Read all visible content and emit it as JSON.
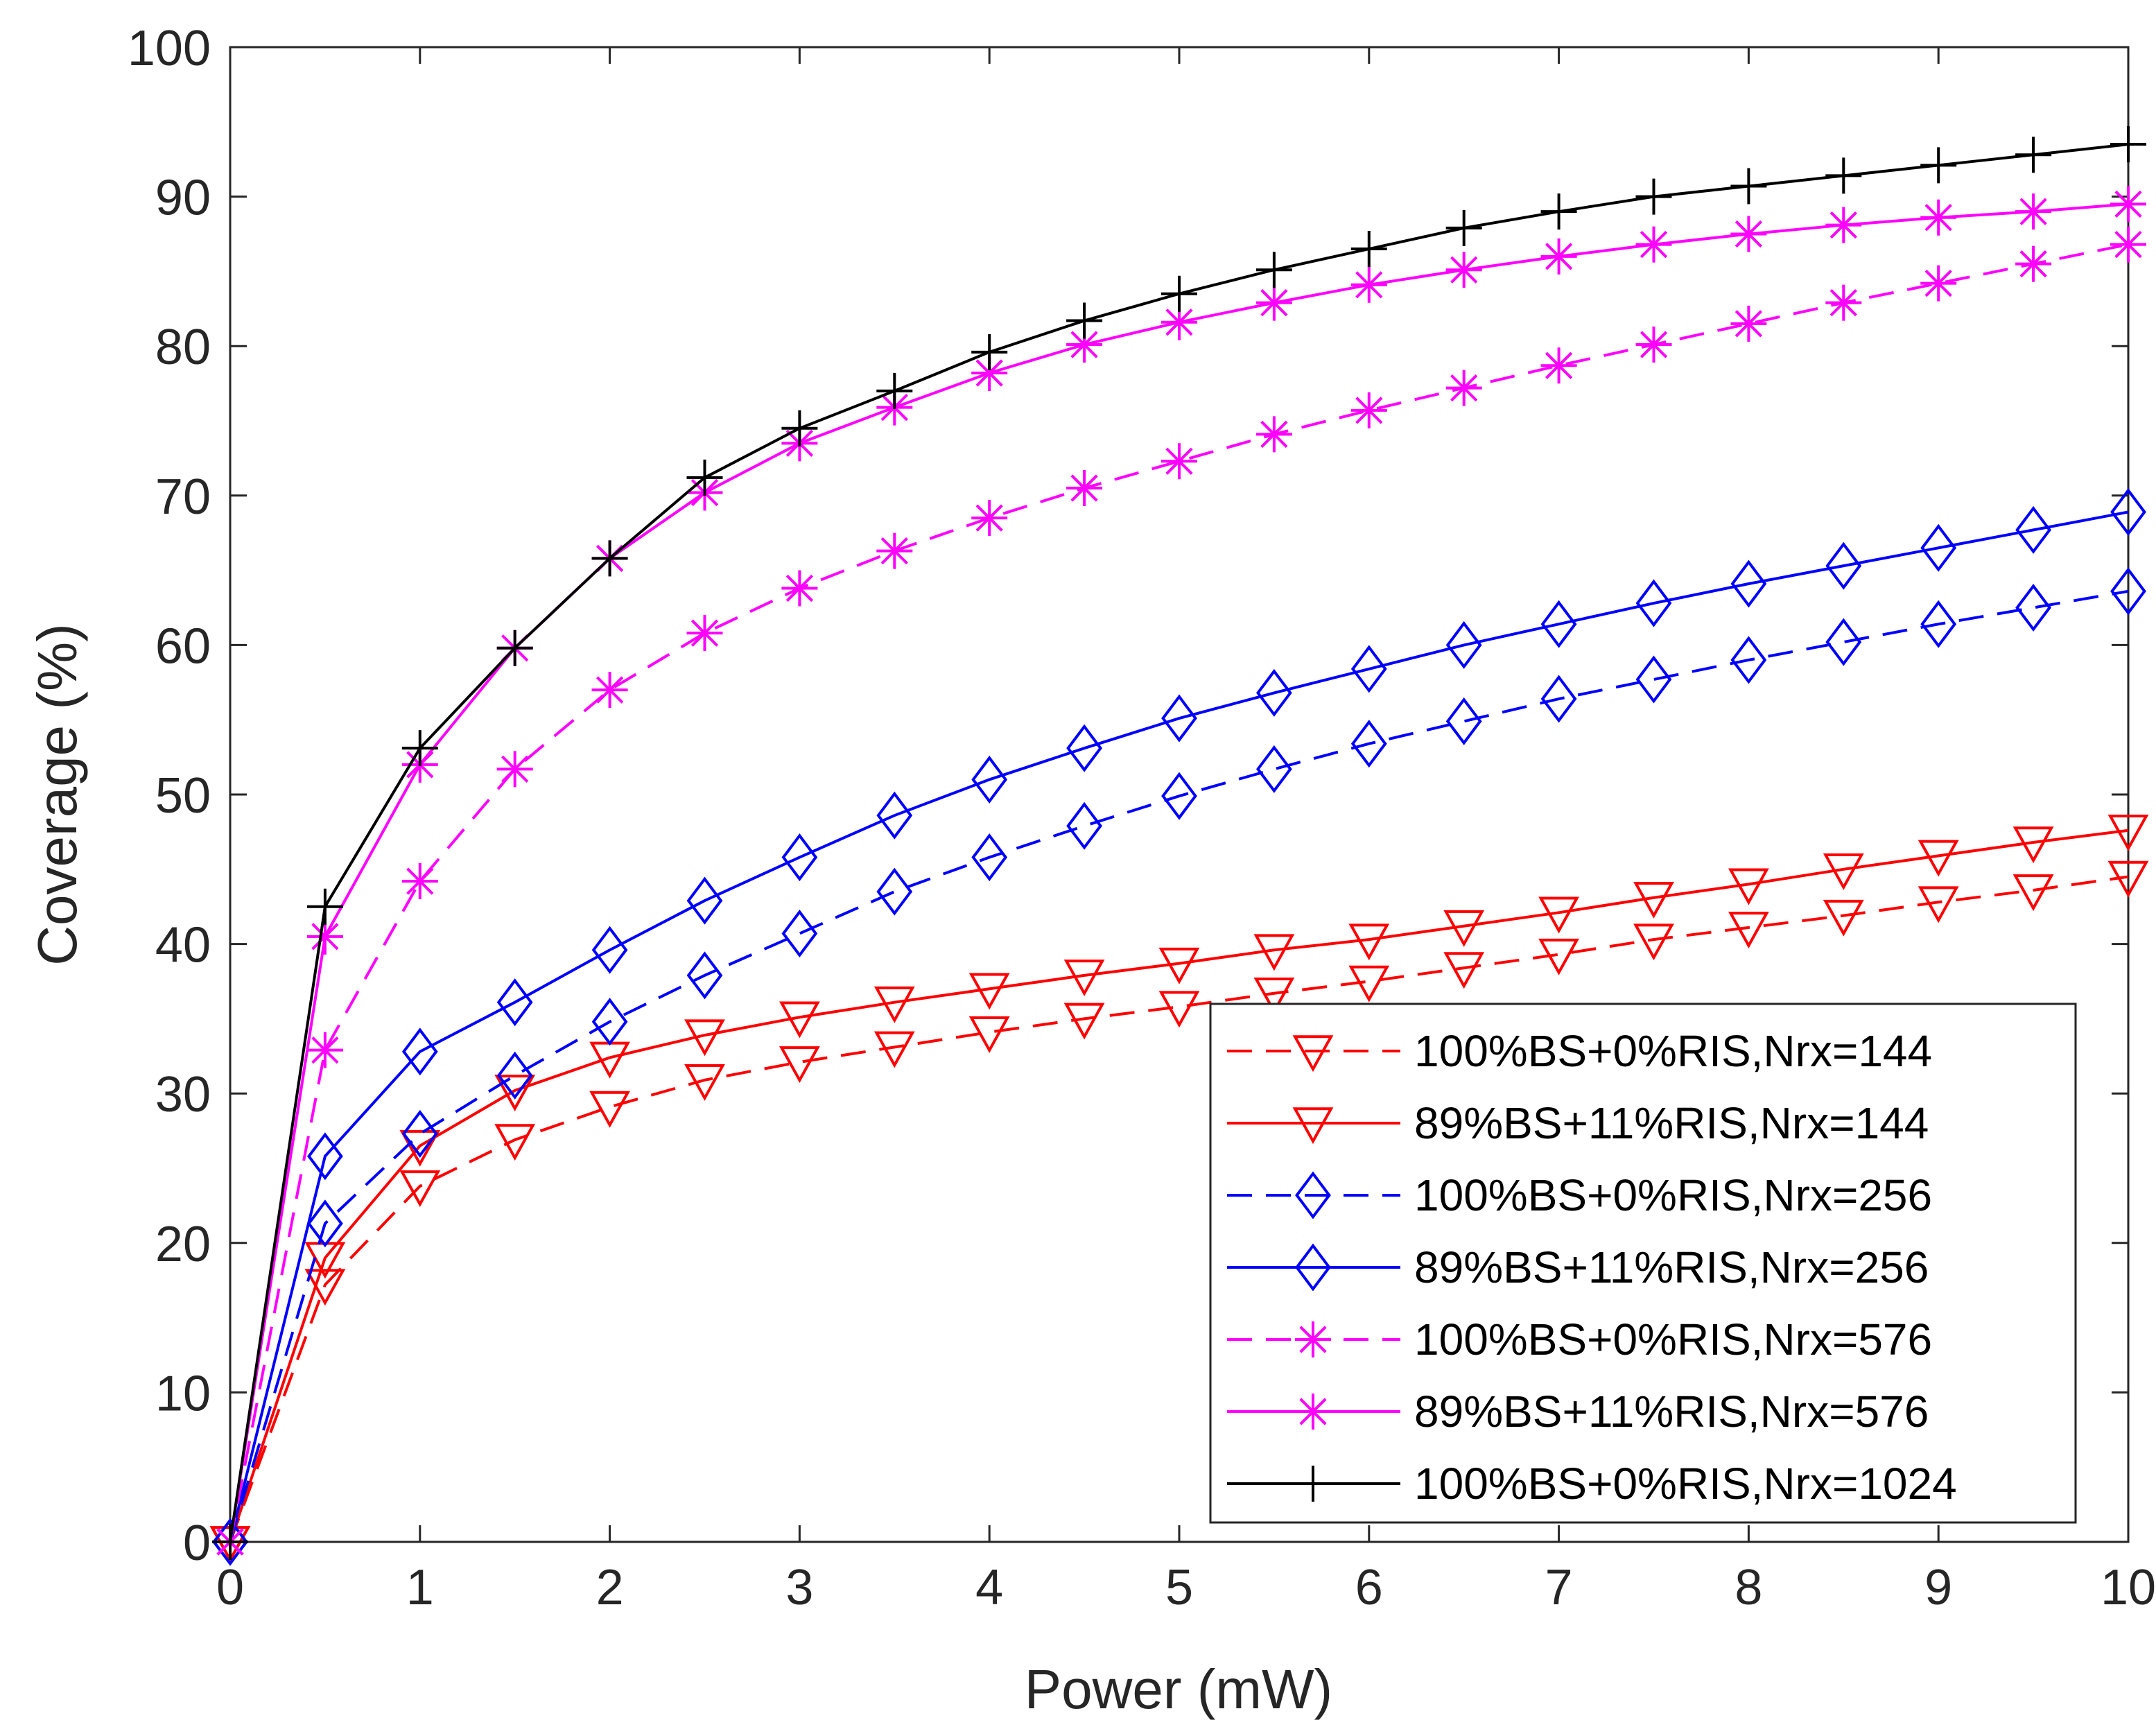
{
  "chart_data": {
    "type": "line",
    "title": "",
    "xlabel": "Power (mW)",
    "ylabel": "Coverage (%)",
    "xlim": [
      0,
      10
    ],
    "ylim": [
      0,
      100
    ],
    "xticks": [
      0,
      1,
      2,
      3,
      4,
      5,
      6,
      7,
      8,
      9,
      10
    ],
    "yticks": [
      0,
      10,
      20,
      30,
      40,
      50,
      60,
      70,
      80,
      90,
      100
    ],
    "grid": false,
    "legend_position": "bottom-right",
    "x": [
      0,
      0.5,
      1,
      1.5,
      2,
      2.5,
      3,
      3.5,
      4,
      4.5,
      5,
      5.5,
      6,
      6.5,
      7,
      7.5,
      8,
      8.5,
      9,
      9.5,
      10
    ],
    "series": [
      {
        "name": "100%BS+0%RIS,Nrx=144",
        "color": "#ff0000",
        "dash": true,
        "marker": "triangle-down",
        "values": [
          0,
          17.2,
          23.8,
          26.9,
          29.1,
          30.9,
          32.1,
          33.1,
          34.1,
          35.0,
          35.8,
          36.7,
          37.5,
          38.4,
          39.3,
          40.3,
          41.1,
          41.9,
          42.8,
          43.6,
          44.5
        ]
      },
      {
        "name": "89%BS+11%RIS,Nrx=144",
        "color": "#ff0000",
        "dash": false,
        "marker": "triangle-down",
        "values": [
          0,
          19.0,
          26.5,
          30.2,
          32.4,
          33.9,
          35.1,
          36.1,
          37.0,
          37.9,
          38.7,
          39.6,
          40.3,
          41.2,
          42.1,
          43.1,
          44.0,
          45.0,
          45.9,
          46.8,
          47.6
        ]
      },
      {
        "name": "100%BS+0%RIS,Nrx=256",
        "color": "#0000ff",
        "dash": true,
        "marker": "diamond",
        "values": [
          0,
          21.3,
          27.3,
          31.2,
          34.8,
          37.9,
          40.7,
          43.5,
          45.8,
          47.9,
          49.9,
          51.7,
          53.4,
          54.9,
          56.4,
          57.7,
          59.0,
          60.2,
          61.4,
          62.5,
          63.6
        ]
      },
      {
        "name": "89%BS+11%RIS,Nrx=256",
        "color": "#0000ff",
        "dash": false,
        "marker": "diamond",
        "values": [
          0,
          25.8,
          32.8,
          36.1,
          39.6,
          42.9,
          45.8,
          48.6,
          51.0,
          53.1,
          55.1,
          56.8,
          58.4,
          60.0,
          61.4,
          62.8,
          64.1,
          65.3,
          66.5,
          67.7,
          68.9
        ]
      },
      {
        "name": "100%BS+0%RIS,Nrx=576",
        "color": "#ff00ff",
        "dash": true,
        "marker": "asterisk",
        "values": [
          0,
          32.9,
          44.2,
          51.7,
          57.0,
          60.8,
          63.8,
          66.3,
          68.5,
          70.5,
          72.3,
          74.1,
          75.7,
          77.2,
          78.7,
          80.1,
          81.5,
          82.9,
          84.2,
          85.5,
          86.8
        ]
      },
      {
        "name": "89%BS+11%RIS,Nrx=576",
        "color": "#ff00ff",
        "dash": false,
        "marker": "asterisk",
        "values": [
          0,
          40.5,
          52.0,
          59.8,
          65.8,
          70.2,
          73.5,
          75.9,
          78.2,
          80.1,
          81.6,
          82.9,
          84.1,
          85.1,
          86.0,
          86.8,
          87.5,
          88.1,
          88.6,
          89.0,
          89.5
        ]
      },
      {
        "name": "100%BS+0%RIS,Nrx=1024",
        "color": "#000000",
        "dash": false,
        "marker": "plus",
        "values": [
          0,
          42.5,
          53.1,
          59.8,
          65.8,
          71.2,
          74.5,
          77.0,
          79.6,
          81.7,
          83.5,
          85.1,
          86.5,
          87.9,
          89.0,
          90.0,
          90.7,
          91.4,
          92.1,
          92.8,
          93.5
        ]
      }
    ]
  }
}
